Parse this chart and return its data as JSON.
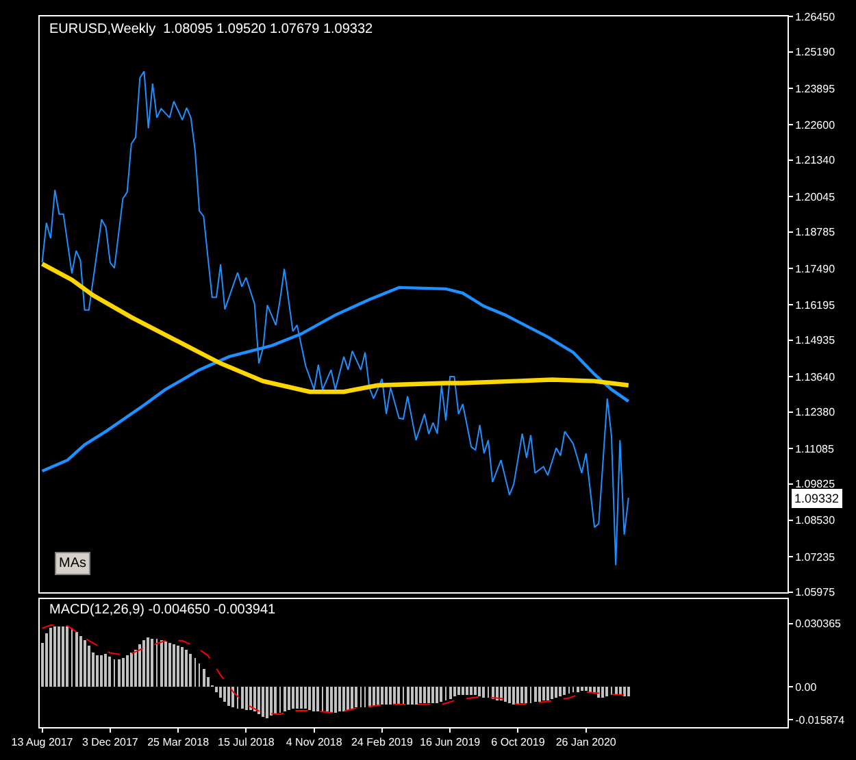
{
  "chart_data": [
    {
      "type": "line",
      "title": "EURUSD,Weekly  1.08095 1.09520 1.07679 1.09332",
      "tick_labels": "y",
      "annotations": [
        "MAs",
        "1.09332"
      ],
      "xlim": [
        "2017-08-09",
        "2020-12-23"
      ],
      "ylim": [
        1.05975,
        1.2645
      ],
      "yticks": [
        {
          "value": 1.2645,
          "label": "1.26450"
        },
        {
          "value": 1.2519,
          "label": "1.25190"
        },
        1.23895,
        {
          "value": 1.226,
          "label": "1.22600"
        },
        {
          "value": 1.2134,
          "label": "1.21340"
        },
        1.20045,
        1.18785,
        {
          "value": 1.1749,
          "label": "1.17490"
        },
        1.16195,
        1.14935,
        {
          "value": 1.1364,
          "label": "1.13640"
        },
        {
          "value": 1.1238,
          "label": "1.12380"
        },
        1.11085,
        1.09825,
        {
          "value": 1.0853,
          "label": "1.08530"
        },
        1.07235,
        1.05975
      ],
      "series": [
        {
          "color": "#1e90ff",
          "x": [
            "2017-08-13",
            "2017-08-20",
            "2017-08-27",
            "2017-09-03",
            "2017-09-10",
            "2017-09-17",
            "2017-10-01",
            "2017-10-08",
            "2017-10-15",
            "2017-10-22",
            "2017-10-29",
            "2017-11-19",
            "2017-11-26",
            "2017-12-03",
            "2017-12-10",
            "2017-12-24",
            "2017-12-31",
            "2018-01-07",
            "2018-01-14",
            "2018-01-21",
            "2018-01-28",
            "2018-02-04",
            "2018-02-11",
            "2018-02-18",
            "2018-02-25",
            "2018-03-11",
            "2018-03-18",
            "2018-04-01",
            "2018-04-08",
            "2018-04-15",
            "2018-04-22",
            "2018-04-29",
            "2018-05-06",
            "2018-05-20",
            "2018-05-27",
            "2018-06-03",
            "2018-06-10",
            "2018-07-01",
            "2018-07-08",
            "2018-07-15",
            "2018-07-29",
            "2018-08-05",
            "2018-08-12",
            "2018-08-19",
            "2018-09-02",
            "2018-09-09",
            "2018-09-16",
            "2018-09-30",
            "2018-10-07",
            "2018-10-21",
            "2018-11-04",
            "2018-11-11",
            "2018-11-18",
            "2018-12-02",
            "2018-12-09",
            "2018-12-23",
            "2018-12-30",
            "2019-01-06",
            "2019-01-20",
            "2019-01-27",
            "2019-02-03",
            "2019-02-10",
            "2019-02-24",
            "2019-03-03",
            "2019-03-10",
            "2019-03-24",
            "2019-03-31",
            "2019-04-07",
            "2019-04-21",
            "2019-05-05",
            "2019-05-12",
            "2019-05-19",
            "2019-05-26",
            "2019-06-02",
            "2019-06-09",
            "2019-06-16",
            "2019-06-23",
            "2019-06-30",
            "2019-07-07",
            "2019-07-21",
            "2019-07-28",
            "2019-08-04",
            "2019-08-11",
            "2019-08-18",
            "2019-08-25",
            "2019-09-08",
            "2019-09-22",
            "2019-09-29",
            "2019-10-13",
            "2019-10-20",
            "2019-10-27",
            "2019-11-03",
            "2019-11-17",
            "2019-11-24",
            "2019-12-08",
            "2019-12-15",
            "2019-12-22",
            "2020-01-05",
            "2020-01-19",
            "2020-01-26",
            "2020-02-09",
            "2020-02-16",
            "2020-03-01",
            "2020-03-08",
            "2020-03-15",
            "2020-03-22",
            "2020-03-29",
            "2020-04-05"
          ],
          "values": [
            1.177,
            1.1911,
            1.1856,
            1.2028,
            1.1942,
            1.1942,
            1.1731,
            1.1812,
            1.1778,
            1.1601,
            1.1601,
            1.1923,
            1.1895,
            1.177,
            1.175,
            1.1997,
            1.202,
            1.2192,
            1.2215,
            1.2426,
            1.245,
            1.2247,
            1.2406,
            1.2285,
            1.2317,
            1.2285,
            1.2343,
            1.2277,
            1.232,
            1.2285,
            1.2168,
            1.1953,
            1.1934,
            1.1646,
            1.1646,
            1.1763,
            1.1603,
            1.1734,
            1.1684,
            1.1716,
            1.1622,
            1.1411,
            1.1466,
            1.1618,
            1.1547,
            1.1638,
            1.1747,
            1.1525,
            1.1547,
            1.1403,
            1.1318,
            1.1406,
            1.1318,
            1.1388,
            1.1318,
            1.1435,
            1.1388,
            1.1455,
            1.1388,
            1.145,
            1.1325,
            1.1286,
            1.1356,
            1.1231,
            1.1325,
            1.1216,
            1.1213,
            1.1294,
            1.1138,
            1.1231,
            1.116,
            1.12,
            1.1161,
            1.1333,
            1.1208,
            1.1364,
            1.1364,
            1.1231,
            1.1266,
            1.1114,
            1.1103,
            1.1192,
            1.1091,
            1.1138,
            1.0989,
            1.1067,
            1.0943,
            1.0982,
            1.1161,
            1.1075,
            1.1156,
            1.1021,
            1.1044,
            1.1013,
            1.111,
            1.1083,
            1.1169,
            1.1125,
            1.1021,
            1.1091,
            1.0828,
            1.0841,
            1.1286,
            1.1153,
            1.0693,
            1.1138,
            1.0802,
            1.0933
          ]
        },
        {
          "color": "#1e90ff",
          "x": [
            "2017-08-13",
            "2017-09-24",
            "2017-10-22",
            "2017-11-26",
            "2018-01-28",
            "2018-03-04",
            "2018-04-29",
            "2018-06-17",
            "2018-08-26",
            "2018-10-14",
            "2018-12-09",
            "2019-02-03",
            "2019-03-24",
            "2019-06-09",
            "2019-07-07",
            "2019-08-11",
            "2019-09-15",
            "2019-10-20",
            "2019-11-24",
            "2020-01-05",
            "2020-02-09",
            "2020-03-08",
            "2020-04-05"
          ],
          "values": [
            1.1028,
            1.1067,
            1.1122,
            1.1169,
            1.1263,
            1.1318,
            1.1388,
            1.1435,
            1.1474,
            1.1516,
            1.1583,
            1.1638,
            1.1681,
            1.1676,
            1.1661,
            1.1614,
            1.1583,
            1.1544,
            1.1505,
            1.145,
            1.1372,
            1.1318,
            1.1276
          ]
        },
        {
          "color": "#ffd700",
          "x": [
            "2017-08-13",
            "2017-10-01",
            "2017-11-05",
            "2018-01-07",
            "2018-03-25",
            "2018-06-03",
            "2018-08-12",
            "2018-10-28",
            "2018-12-23",
            "2019-02-17",
            "2019-06-09",
            "2019-07-07",
            "2019-12-01",
            "2020-02-09",
            "2020-04-05"
          ],
          "values": [
            1.1765,
            1.1708,
            1.1653,
            1.1575,
            1.1489,
            1.1411,
            1.1348,
            1.131,
            1.131,
            1.1333,
            1.1341,
            1.1341,
            1.1353,
            1.1348,
            1.1333
          ]
        }
      ]
    },
    {
      "type": "bar",
      "title": "MACD(12,26,9) -0.004650 -0.003941",
      "xlim": [
        "2017-08-09",
        "2020-12-23"
      ],
      "xticks": [
        {
          "value": "2017-08-13",
          "label": "13 Aug 2017"
        },
        {
          "value": "2017-12-03",
          "label": "3 Dec 2017"
        },
        {
          "value": "2018-03-25",
          "label": "25 Mar 2018"
        },
        {
          "value": "2018-07-15",
          "label": "15 Jul 2018"
        },
        {
          "value": "2018-11-04",
          "label": "4 Nov 2018"
        },
        {
          "value": "2019-02-24",
          "label": "24 Feb 2019"
        },
        {
          "value": "2019-06-16",
          "label": "16 Jun 2019"
        },
        {
          "value": "2019-10-06",
          "label": "6 Oct 2019"
        },
        {
          "value": "2020-01-26",
          "label": "26 Jan 2020"
        }
      ],
      "ylim": [
        -0.0194,
        0.042
      ],
      "yticks": [
        0.030365,
        {
          "value": 0,
          "label": "0.00"
        },
        -0.015874
      ],
      "series": [
        {
          "type": "bar",
          "color": "#c0c0c0",
          "x": [
            "2017-08-13",
            "2017-08-20",
            "2017-08-27",
            "2017-09-03",
            "2017-09-10",
            "2017-09-17",
            "2017-09-24",
            "2017-10-01",
            "2017-10-08",
            "2017-10-15",
            "2017-10-22",
            "2017-10-29",
            "2017-11-05",
            "2017-11-12",
            "2017-11-19",
            "2017-11-26",
            "2017-12-03",
            "2017-12-10",
            "2017-12-17",
            "2017-12-24",
            "2017-12-31",
            "2018-01-07",
            "2018-01-14",
            "2018-01-21",
            "2018-01-28",
            "2018-02-04",
            "2018-02-11",
            "2018-02-18",
            "2018-02-25",
            "2018-03-04",
            "2018-03-11",
            "2018-03-18",
            "2018-03-25",
            "2018-04-01",
            "2018-04-08",
            "2018-04-15",
            "2018-04-22",
            "2018-04-29",
            "2018-05-06",
            "2018-05-13",
            "2018-05-20",
            "2018-05-27",
            "2018-06-03",
            "2018-06-10",
            "2018-06-17",
            "2018-06-24",
            "2018-07-01",
            "2018-07-08",
            "2018-07-15",
            "2018-07-22",
            "2018-07-29",
            "2018-08-05",
            "2018-08-12",
            "2018-08-19",
            "2018-08-26",
            "2018-09-02",
            "2018-09-09",
            "2018-09-16",
            "2018-09-23",
            "2018-09-30",
            "2018-10-07",
            "2018-10-14",
            "2018-10-21",
            "2018-10-28",
            "2018-11-04",
            "2018-11-11",
            "2018-11-18",
            "2018-11-25",
            "2018-12-02",
            "2018-12-09",
            "2018-12-16",
            "2018-12-23",
            "2018-12-30",
            "2019-01-06",
            "2019-01-13",
            "2019-01-20",
            "2019-01-27",
            "2019-02-03",
            "2019-02-10",
            "2019-02-17",
            "2019-02-24",
            "2019-03-03",
            "2019-03-10",
            "2019-03-17",
            "2019-03-24",
            "2019-03-31",
            "2019-04-07",
            "2019-04-14",
            "2019-04-21",
            "2019-04-28",
            "2019-05-05",
            "2019-05-12",
            "2019-05-19",
            "2019-05-26",
            "2019-06-02",
            "2019-06-09",
            "2019-06-16",
            "2019-06-23",
            "2019-06-30",
            "2019-07-07",
            "2019-07-14",
            "2019-07-21",
            "2019-07-28",
            "2019-08-04",
            "2019-08-11",
            "2019-08-18",
            "2019-08-25",
            "2019-09-01",
            "2019-09-08",
            "2019-09-15",
            "2019-09-22",
            "2019-09-29",
            "2019-10-06",
            "2019-10-13",
            "2019-10-20",
            "2019-10-27",
            "2019-11-03",
            "2019-11-10",
            "2019-11-17",
            "2019-11-24",
            "2019-12-01",
            "2019-12-08",
            "2019-12-15",
            "2019-12-22",
            "2019-12-29",
            "2020-01-05",
            "2020-01-12",
            "2020-01-19",
            "2020-01-26",
            "2020-02-02",
            "2020-02-09",
            "2020-02-16",
            "2020-02-23",
            "2020-03-01",
            "2020-03-08",
            "2020-03-15",
            "2020-03-22",
            "2020-03-29",
            "2020-04-05"
          ],
          "values": [
            0.0209,
            0.0256,
            0.028,
            0.0288,
            0.029,
            0.029,
            0.029,
            0.0282,
            0.0265,
            0.0245,
            0.0222,
            0.0195,
            0.0165,
            0.0152,
            0.0152,
            0.0155,
            0.0145,
            0.0132,
            0.0132,
            0.014,
            0.015,
            0.0163,
            0.0178,
            0.02,
            0.0222,
            0.0233,
            0.0232,
            0.0229,
            0.0223,
            0.0216,
            0.021,
            0.0206,
            0.0198,
            0.0187,
            0.0177,
            0.016,
            0.014,
            0.011,
            0.0085,
            0.0045,
            0.0005,
            -0.0025,
            -0.005,
            -0.0075,
            -0.009,
            -0.01,
            -0.0106,
            -0.0109,
            -0.0111,
            -0.0113,
            -0.0122,
            -0.0133,
            -0.0145,
            -0.015,
            -0.014,
            -0.013,
            -0.0124,
            -0.0119,
            -0.0113,
            -0.0108,
            -0.0108,
            -0.0108,
            -0.0109,
            -0.0115,
            -0.012,
            -0.012,
            -0.012,
            -0.0122,
            -0.0125,
            -0.0127,
            -0.0122,
            -0.0118,
            -0.0112,
            -0.0105,
            -0.0102,
            -0.01,
            -0.0099,
            -0.0097,
            -0.0095,
            -0.0092,
            -0.0088,
            -0.0085,
            -0.0085,
            -0.0085,
            -0.0085,
            -0.0085,
            -0.0085,
            -0.0085,
            -0.0085,
            -0.0082,
            -0.0081,
            -0.008,
            -0.008,
            -0.008,
            -0.0075,
            -0.0068,
            -0.006,
            -0.0048,
            -0.0042,
            -0.004,
            -0.0038,
            -0.0039,
            -0.0041,
            -0.0045,
            -0.005,
            -0.0056,
            -0.006,
            -0.0064,
            -0.0068,
            -0.0074,
            -0.008,
            -0.0083,
            -0.0085,
            -0.0082,
            -0.0079,
            -0.0077,
            -0.0073,
            -0.007,
            -0.0067,
            -0.0064,
            -0.006,
            -0.0056,
            -0.0049,
            -0.0042,
            -0.0036,
            -0.003,
            -0.0025,
            -0.0021,
            -0.0019,
            -0.0027,
            -0.0035,
            -0.005,
            -0.0055,
            -0.0045,
            -0.0041,
            -0.0038,
            -0.0042,
            -0.0049,
            -0.0047
          ]
        },
        {
          "type": "line",
          "line_style": "dashed",
          "color": "#ff0000",
          "x": [
            "2017-08-13",
            "2017-08-27",
            "2017-09-24",
            "2017-10-29",
            "2017-12-03",
            "2017-12-31",
            "2018-01-28",
            "2018-03-04",
            "2018-04-01",
            "2018-04-22",
            "2018-05-13",
            "2018-06-03",
            "2018-06-24",
            "2018-07-15",
            "2018-08-12",
            "2018-09-09",
            "2018-09-30",
            "2018-11-04",
            "2018-12-09",
            "2019-01-13",
            "2019-03-03",
            "2019-05-12",
            "2019-06-02",
            "2019-06-30",
            "2019-08-04",
            "2019-09-08",
            "2019-10-06",
            "2019-10-27",
            "2019-12-01",
            "2019-12-29",
            "2020-01-26",
            "2020-02-23",
            "2020-03-15",
            "2020-04-05"
          ],
          "values": [
            0.028,
            0.0296,
            0.0292,
            0.0221,
            0.0162,
            0.015,
            0.0186,
            0.0221,
            0.0221,
            0.0193,
            0.015,
            0.0056,
            -0.0026,
            -0.0085,
            -0.0127,
            -0.0132,
            -0.0115,
            -0.0115,
            -0.0127,
            -0.0103,
            -0.0085,
            -0.0085,
            -0.0085,
            -0.0061,
            -0.0049,
            -0.0056,
            -0.0085,
            -0.008,
            -0.0068,
            -0.0054,
            -0.0026,
            -0.0033,
            -0.0038,
            -0.0039
          ]
        }
      ]
    }
  ]
}
